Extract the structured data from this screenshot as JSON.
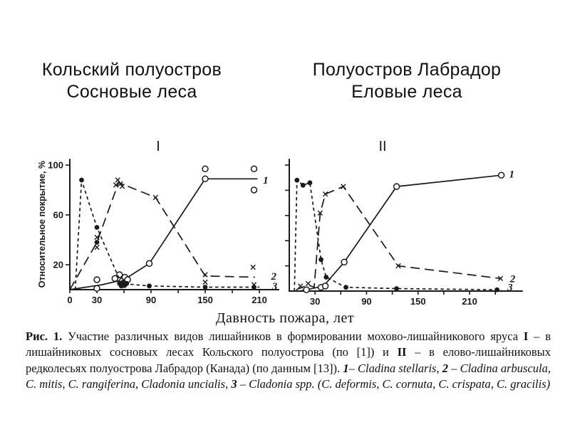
{
  "colors": {
    "ink": "#1a1a1a",
    "background": "#ffffff"
  },
  "titles": {
    "left": {
      "line1": "Кольский полуостров",
      "line2": "Сосновые леса"
    },
    "right": {
      "line1": "Полуостров Лабрадор",
      "line2": "Еловые леса"
    }
  },
  "x_axis_label": "Давность пожара, лет",
  "caption_segments": [
    {
      "t": "Рис. 1.",
      "s": "b"
    },
    {
      "t": " Участие различных видов лишайников в формировании мохово-лишайникового яруса ",
      "s": ""
    },
    {
      "t": "I",
      "s": "b"
    },
    {
      "t": " – в лишайниковых сосновых лесах Кольского полуострова (по [1]) и ",
      "s": ""
    },
    {
      "t": "II",
      "s": "b"
    },
    {
      "t": " – в елово-лишайниковых редколесьях полуострова Лабрадор (Канада) (по данным [13]). ",
      "s": ""
    },
    {
      "t": "1",
      "s": "bi"
    },
    {
      "t": "– ",
      "s": ""
    },
    {
      "t": "Cladina stellaris",
      "s": "i"
    },
    {
      "t": ", ",
      "s": ""
    },
    {
      "t": "2",
      "s": "bi"
    },
    {
      "t": " – ",
      "s": ""
    },
    {
      "t": "Cladina arbuscula, C. mitis, C. rangiferina, Cladonia uncialis",
      "s": "i"
    },
    {
      "t": ", ",
      "s": ""
    },
    {
      "t": "3",
      "s": "bi"
    },
    {
      "t": " – ",
      "s": ""
    },
    {
      "t": "Cladonia spp. (C. deformis, C. cornuta, C. crispata, C. gracilis)",
      "s": "i"
    }
  ],
  "chart_data": [
    {
      "type": "line",
      "title": "I",
      "ylabel": "Относительное покрытие, %",
      "xlabel": "Давность пожара, лет",
      "xlim": [
        0,
        232
      ],
      "ylim": [
        0,
        105
      ],
      "x_ticks": [
        0,
        30,
        60,
        90,
        120,
        150,
        180,
        210
      ],
      "x_tick_labels": [
        "0",
        "30",
        "",
        "90",
        "",
        "150",
        "",
        "210"
      ],
      "y_ticks": [
        20,
        60,
        100
      ],
      "y_tick_labels": [
        "20",
        "60",
        "100"
      ],
      "series": [
        {
          "name": "1",
          "species": "Cladina stellaris",
          "marker": "circle-open",
          "line_style": "solid",
          "line": [
            [
              0,
              0
            ],
            [
              36,
              4
            ],
            [
              60,
              8
            ],
            [
              88,
              21
            ],
            [
              150,
              89
            ],
            [
              208,
              89
            ]
          ],
          "points": [
            [
              30,
              8
            ],
            [
              30,
              1
            ],
            [
              50,
              9
            ],
            [
              55,
              12
            ],
            [
              58,
              7
            ],
            [
              61,
              10
            ],
            [
              64,
              8
            ],
            [
              60,
              4
            ],
            [
              88,
              21
            ],
            [
              150,
              97
            ],
            [
              150,
              89
            ],
            [
              204,
              97
            ],
            [
              204,
              80
            ]
          ],
          "label_pos": [
            214,
            88
          ]
        },
        {
          "name": "2",
          "species": "Cladina arbuscula, C. mitis, C. rangiferina, Cladonia uncialis",
          "marker": "x",
          "line_style": "long-dash",
          "line": [
            [
              0,
              0
            ],
            [
              30,
              38
            ],
            [
              54,
              86
            ],
            [
              95,
              74
            ],
            [
              150,
              11
            ],
            [
              205,
              10
            ]
          ],
          "points": [
            [
              30,
              42
            ],
            [
              30,
              34
            ],
            [
              51,
              84
            ],
            [
              53,
              88
            ],
            [
              56,
              85
            ],
            [
              58,
              83
            ],
            [
              95,
              74
            ],
            [
              150,
              12
            ],
            [
              150,
              6
            ],
            [
              203,
              18
            ],
            [
              204,
              4
            ]
          ],
          "label_pos": [
            223,
            11
          ]
        },
        {
          "name": "3",
          "species": "Cladonia spp. (C. deformis, C. cornuta, C. crispata, C. gracilis)",
          "marker": "circle-filled",
          "line_style": "short-dash",
          "line": [
            [
              6,
              0
            ],
            [
              13,
              88
            ],
            [
              30,
              50
            ],
            [
              57,
              5
            ],
            [
              88,
              3
            ],
            [
              150,
              2
            ],
            [
              210,
              2
            ]
          ],
          "points": [
            [
              13,
              88
            ],
            [
              30,
              50
            ],
            [
              30,
              38
            ],
            [
              55,
              5
            ],
            [
              57,
              3
            ],
            [
              59,
              6
            ],
            [
              61,
              4
            ],
            [
              63,
              5
            ],
            [
              88,
              3
            ],
            [
              150,
              2
            ],
            [
              204,
              2
            ]
          ],
          "label_pos": [
            224,
            3
          ]
        }
      ]
    },
    {
      "type": "line",
      "title": "II",
      "ylabel": "",
      "xlabel": "Давность пожара, лет",
      "xlim": [
        0,
        272
      ],
      "ylim": [
        0,
        105
      ],
      "x_ticks": [
        30,
        60,
        90,
        120,
        150,
        180,
        210,
        240
      ],
      "x_tick_labels": [
        "30",
        "",
        "90",
        "",
        "150",
        "",
        "210",
        ""
      ],
      "y_ticks": [
        20,
        40,
        60,
        80,
        100
      ],
      "y_tick_labels": [
        "",
        "",
        "",
        "",
        ""
      ],
      "series": [
        {
          "name": "1",
          "species": "Cladina stellaris",
          "marker": "circle-open",
          "line_style": "solid",
          "line": [
            [
              12,
              0
            ],
            [
              20,
              1
            ],
            [
              40,
              4
            ],
            [
              64,
              23
            ],
            [
              125,
              83
            ],
            [
              247,
              92
            ]
          ],
          "points": [
            [
              20,
              1
            ],
            [
              37,
              3
            ],
            [
              42,
              4
            ],
            [
              64,
              23
            ],
            [
              125,
              83
            ],
            [
              247,
              92
            ]
          ],
          "label_pos": [
            256,
            93
          ]
        },
        {
          "name": "2",
          "species": "Cladina arbuscula, C. mitis, C. rangiferina, Cladonia uncialis",
          "marker": "x",
          "line_style": "long-dash",
          "line": [
            [
              8,
              1
            ],
            [
              22,
              5
            ],
            [
              29,
              3
            ],
            [
              36,
              62
            ],
            [
              42,
              77
            ],
            [
              63,
              83
            ],
            [
              127,
              20
            ],
            [
              246,
              10
            ]
          ],
          "points": [
            [
              13,
              4
            ],
            [
              22,
              6
            ],
            [
              36,
              62
            ],
            [
              42,
              77
            ],
            [
              63,
              83
            ],
            [
              127,
              20
            ],
            [
              246,
              10
            ]
          ],
          "label_pos": [
            257,
            10
          ]
        },
        {
          "name": "3",
          "species": "Cladonia spp. (C. deformis, C. cornuta, C. crispata, C. gracilis)",
          "marker": "circle-filled",
          "line_style": "short-dash",
          "line": [
            [
              6,
              0
            ],
            [
              9,
              88
            ],
            [
              16,
              84
            ],
            [
              24,
              86
            ],
            [
              37,
              25
            ],
            [
              43,
              11
            ],
            [
              66,
              3
            ],
            [
              125,
              2
            ],
            [
              247,
              1
            ]
          ],
          "points": [
            [
              9,
              88
            ],
            [
              16,
              84
            ],
            [
              24,
              86
            ],
            [
              37,
              25
            ],
            [
              43,
              11
            ],
            [
              66,
              3
            ],
            [
              125,
              2
            ],
            [
              242,
              1
            ]
          ],
          "label_pos": [
            254,
            3
          ]
        }
      ]
    }
  ]
}
